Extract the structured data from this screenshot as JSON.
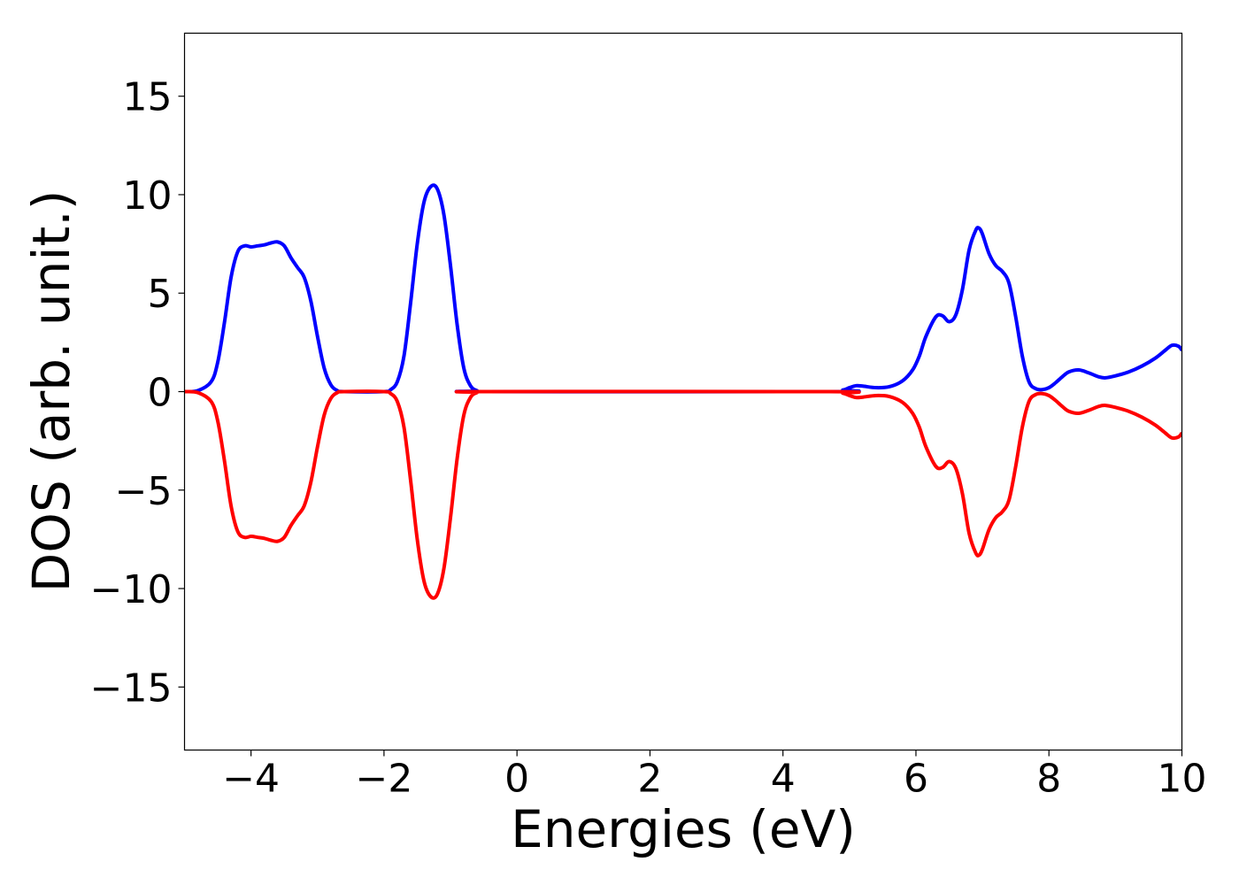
{
  "chart_data": {
    "type": "line",
    "title": "",
    "xlabel": "Energies (eV)",
    "ylabel": "DOS (arb. unit.)",
    "xlim": [
      -5,
      10
    ],
    "ylim": [
      -18.2,
      18.2
    ],
    "grid": false,
    "legend": "none",
    "x_ticks": [
      -4,
      -2,
      0,
      2,
      4,
      6,
      8,
      10
    ],
    "x_tick_labels": [
      "−4",
      "−2",
      "0",
      "2",
      "4",
      "6",
      "8",
      "10"
    ],
    "y_ticks": [
      15,
      10,
      5,
      0,
      -5,
      -10,
      -15
    ],
    "y_tick_labels": [
      "15",
      "10",
      "5",
      "0",
      "−5",
      "−10",
      "−15"
    ],
    "series": [
      {
        "color": "#0000ff",
        "points": [
          [
            -5.0,
            0.0
          ],
          [
            -4.8,
            0.05
          ],
          [
            -4.6,
            0.5
          ],
          [
            -4.5,
            1.5
          ],
          [
            -4.4,
            3.5
          ],
          [
            -4.3,
            5.8
          ],
          [
            -4.2,
            7.1
          ],
          [
            -4.1,
            7.4
          ],
          [
            -4.0,
            7.35
          ],
          [
            -3.9,
            7.4
          ],
          [
            -3.8,
            7.45
          ],
          [
            -3.7,
            7.55
          ],
          [
            -3.6,
            7.6
          ],
          [
            -3.5,
            7.4
          ],
          [
            -3.4,
            6.8
          ],
          [
            -3.3,
            6.3
          ],
          [
            -3.2,
            5.8
          ],
          [
            -3.1,
            4.6
          ],
          [
            -3.0,
            2.8
          ],
          [
            -2.9,
            1.2
          ],
          [
            -2.8,
            0.35
          ],
          [
            -2.7,
            0.05
          ],
          [
            -2.6,
            0.0
          ],
          [
            -2.0,
            0.0
          ],
          [
            -1.9,
            0.1
          ],
          [
            -1.8,
            0.5
          ],
          [
            -1.7,
            1.8
          ],
          [
            -1.6,
            4.5
          ],
          [
            -1.5,
            7.5
          ],
          [
            -1.4,
            9.6
          ],
          [
            -1.3,
            10.4
          ],
          [
            -1.2,
            10.3
          ],
          [
            -1.1,
            9.0
          ],
          [
            -1.0,
            6.4
          ],
          [
            -0.9,
            3.4
          ],
          [
            -0.8,
            1.2
          ],
          [
            -0.7,
            0.3
          ],
          [
            -0.6,
            0.05
          ],
          [
            -0.5,
            0.0
          ],
          [
            4.7,
            0.0
          ],
          [
            4.9,
            0.08
          ],
          [
            5.0,
            0.2
          ],
          [
            5.1,
            0.3
          ],
          [
            5.2,
            0.28
          ],
          [
            5.4,
            0.2
          ],
          [
            5.6,
            0.25
          ],
          [
            5.8,
            0.55
          ],
          [
            5.95,
            1.1
          ],
          [
            6.05,
            1.8
          ],
          [
            6.15,
            2.8
          ],
          [
            6.3,
            3.8
          ],
          [
            6.4,
            3.85
          ],
          [
            6.5,
            3.55
          ],
          [
            6.6,
            3.9
          ],
          [
            6.7,
            5.2
          ],
          [
            6.8,
            7.2
          ],
          [
            6.9,
            8.2
          ],
          [
            6.95,
            8.3
          ],
          [
            7.0,
            8.0
          ],
          [
            7.1,
            7.0
          ],
          [
            7.2,
            6.4
          ],
          [
            7.3,
            6.1
          ],
          [
            7.4,
            5.5
          ],
          [
            7.5,
            3.8
          ],
          [
            7.6,
            1.8
          ],
          [
            7.7,
            0.5
          ],
          [
            7.8,
            0.15
          ],
          [
            7.9,
            0.1
          ],
          [
            8.0,
            0.2
          ],
          [
            8.1,
            0.45
          ],
          [
            8.2,
            0.75
          ],
          [
            8.3,
            1.0
          ],
          [
            8.45,
            1.1
          ],
          [
            8.6,
            0.95
          ],
          [
            8.75,
            0.75
          ],
          [
            8.85,
            0.7
          ],
          [
            9.0,
            0.8
          ],
          [
            9.2,
            1.0
          ],
          [
            9.4,
            1.3
          ],
          [
            9.6,
            1.7
          ],
          [
            9.75,
            2.1
          ],
          [
            9.85,
            2.35
          ],
          [
            9.95,
            2.3
          ],
          [
            10.0,
            2.1
          ]
        ]
      },
      {
        "color": "#ff0000",
        "points": [
          [
            -5.0,
            0.0
          ],
          [
            -4.8,
            -0.05
          ],
          [
            -4.6,
            -0.5
          ],
          [
            -4.5,
            -1.5
          ],
          [
            -4.4,
            -3.5
          ],
          [
            -4.3,
            -5.8
          ],
          [
            -4.2,
            -7.1
          ],
          [
            -4.1,
            -7.4
          ],
          [
            -4.0,
            -7.35
          ],
          [
            -3.9,
            -7.4
          ],
          [
            -3.8,
            -7.45
          ],
          [
            -3.7,
            -7.55
          ],
          [
            -3.6,
            -7.6
          ],
          [
            -3.5,
            -7.4
          ],
          [
            -3.4,
            -6.8
          ],
          [
            -3.3,
            -6.3
          ],
          [
            -3.2,
            -5.8
          ],
          [
            -3.1,
            -4.6
          ],
          [
            -3.0,
            -2.8
          ],
          [
            -2.9,
            -1.2
          ],
          [
            -2.8,
            -0.35
          ],
          [
            -2.7,
            -0.05
          ],
          [
            -2.6,
            0.0
          ],
          [
            -2.0,
            0.0
          ],
          [
            -1.9,
            -0.1
          ],
          [
            -1.8,
            -0.5
          ],
          [
            -1.7,
            -1.8
          ],
          [
            -1.6,
            -4.5
          ],
          [
            -1.5,
            -7.5
          ],
          [
            -1.4,
            -9.6
          ],
          [
            -1.3,
            -10.4
          ],
          [
            -1.2,
            -10.3
          ],
          [
            -1.1,
            -9.0
          ],
          [
            -1.0,
            -6.4
          ],
          [
            -0.9,
            -3.4
          ],
          [
            -0.8,
            -1.2
          ],
          [
            -0.7,
            -0.3
          ],
          [
            -0.6,
            -0.05
          ],
          [
            -0.5,
            0.0
          ],
          [
            4.7,
            0.0
          ],
          [
            4.9,
            -0.08
          ],
          [
            5.0,
            -0.2
          ],
          [
            5.1,
            -0.3
          ],
          [
            5.2,
            -0.28
          ],
          [
            5.4,
            -0.2
          ],
          [
            5.6,
            -0.25
          ],
          [
            5.8,
            -0.55
          ],
          [
            5.95,
            -1.1
          ],
          [
            6.05,
            -1.8
          ],
          [
            6.15,
            -2.8
          ],
          [
            6.3,
            -3.8
          ],
          [
            6.4,
            -3.85
          ],
          [
            6.5,
            -3.55
          ],
          [
            6.6,
            -3.9
          ],
          [
            6.7,
            -5.2
          ],
          [
            6.8,
            -7.2
          ],
          [
            6.9,
            -8.2
          ],
          [
            6.95,
            -8.3
          ],
          [
            7.0,
            -8.0
          ],
          [
            7.1,
            -7.0
          ],
          [
            7.2,
            -6.4
          ],
          [
            7.3,
            -6.1
          ],
          [
            7.4,
            -5.5
          ],
          [
            7.5,
            -3.8
          ],
          [
            7.6,
            -1.8
          ],
          [
            7.7,
            -0.5
          ],
          [
            7.8,
            -0.15
          ],
          [
            7.9,
            -0.1
          ],
          [
            8.0,
            -0.2
          ],
          [
            8.1,
            -0.45
          ],
          [
            8.2,
            -0.75
          ],
          [
            8.3,
            -1.0
          ],
          [
            8.45,
            -1.1
          ],
          [
            8.6,
            -0.95
          ],
          [
            8.75,
            -0.75
          ],
          [
            8.85,
            -0.7
          ],
          [
            9.0,
            -0.8
          ],
          [
            9.2,
            -1.0
          ],
          [
            9.4,
            -1.3
          ],
          [
            9.6,
            -1.7
          ],
          [
            9.75,
            -2.1
          ],
          [
            9.85,
            -2.35
          ],
          [
            9.95,
            -2.3
          ],
          [
            10.0,
            -2.1
          ]
        ]
      }
    ]
  }
}
